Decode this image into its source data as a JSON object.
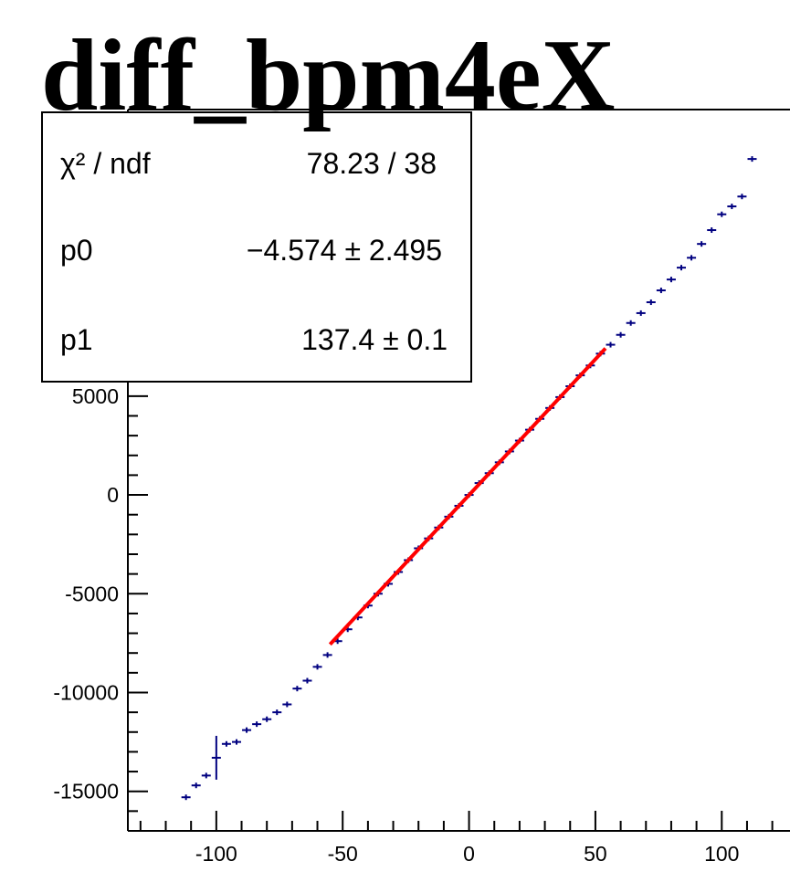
{
  "chart_data": {
    "type": "scatter",
    "title": "diff_bpm4eX",
    "xlabel": "",
    "ylabel": "",
    "xlim": [
      -135,
      127
    ],
    "ylim": [
      -17000,
      19500
    ],
    "x_ticks": [
      "-100",
      "-50",
      "0",
      "50",
      "100"
    ],
    "y_ticks": [
      "-15000",
      "-10000",
      "-5000",
      "0",
      "5000"
    ],
    "y_tick_values": [
      -15000,
      -10000,
      -5000,
      0,
      5000
    ],
    "x_tick_values": [
      -100,
      -50,
      0,
      50,
      100
    ],
    "grid": false,
    "series": [
      {
        "kind": "profile-points",
        "color": "#000080",
        "x": [
          -112,
          -108,
          -104,
          -100,
          -96,
          -92,
          -88,
          -84,
          -80,
          -76,
          -72,
          -68,
          -64,
          -60,
          -56,
          -52,
          -48,
          -44,
          -40,
          -36,
          -32,
          -28,
          -24,
          -20,
          -16,
          -12,
          -8,
          -4,
          0,
          4,
          8,
          12,
          16,
          20,
          24,
          28,
          32,
          36,
          40,
          44,
          48,
          52,
          56,
          60,
          64,
          68,
          72,
          76,
          80,
          84,
          88,
          92,
          96,
          100,
          104,
          108,
          112
        ],
        "y": [
          -15300,
          -14700,
          -14200,
          -13300,
          -12600,
          -12500,
          -11900,
          -11600,
          -11350,
          -11000,
          -10600,
          -9800,
          -9400,
          -8700,
          -8100,
          -7400,
          -6800,
          -6200,
          -5600,
          -5000,
          -4500,
          -3900,
          -3300,
          -2700,
          -2200,
          -1650,
          -1100,
          -550,
          0,
          600,
          1100,
          1650,
          2200,
          2750,
          3300,
          3850,
          4400,
          4950,
          5500,
          6050,
          6550,
          7150,
          7600,
          8100,
          8700,
          9200,
          9750,
          10350,
          10900,
          11500,
          12000,
          12700,
          13400,
          14200,
          14600,
          15100,
          17000
        ]
      },
      {
        "kind": "fit-line",
        "color": "#ff0000",
        "x_range": [
          -55,
          54
        ],
        "p0": -4.574,
        "p1": 137.4
      }
    ],
    "stats": {
      "rows": [
        {
          "label": "χ² / ndf",
          "value": "78.23 / 38"
        },
        {
          "label": "p0",
          "value": "−4.574  ± 2.495"
        },
        {
          "label": "p1",
          "value": "137.4  ± 0.1"
        }
      ]
    }
  }
}
